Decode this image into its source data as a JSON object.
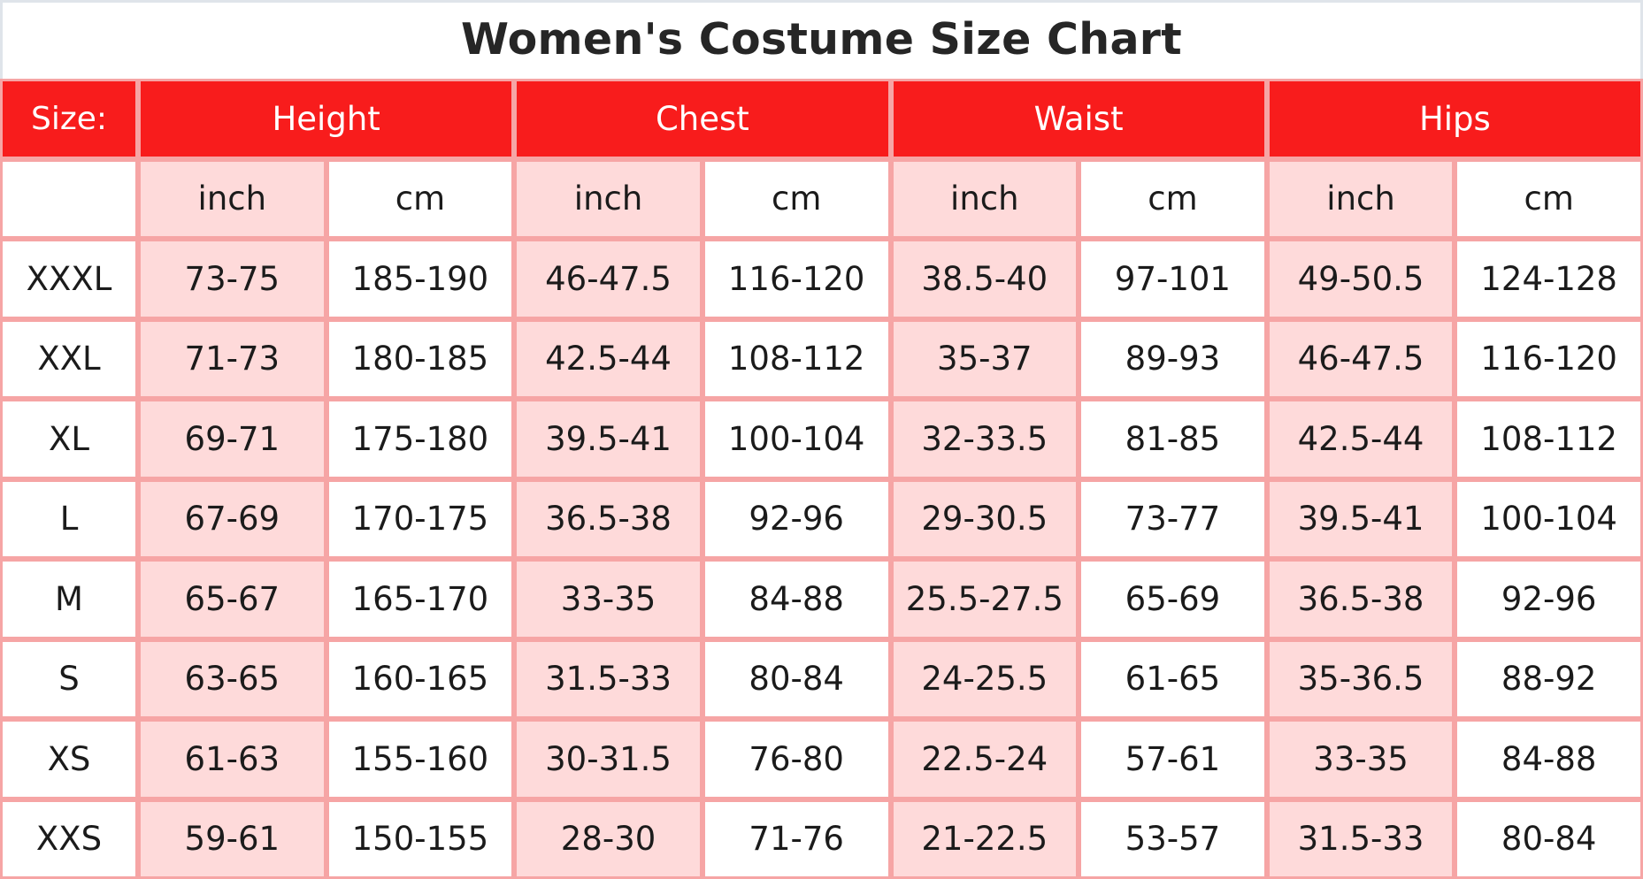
{
  "title": "Women's Costume Size Chart",
  "header": {
    "size_label": "Size:",
    "groups": [
      "Height",
      "Chest",
      "Waist",
      "Hips"
    ],
    "units": [
      "inch",
      "cm",
      "inch",
      "cm",
      "inch",
      "cm",
      "inch",
      "cm"
    ]
  },
  "rows": [
    {
      "size": "XXXL",
      "values": [
        "73-75",
        "185-190",
        "46-47.5",
        "116-120",
        "38.5-40",
        "97-101",
        "49-50.5",
        "124-128"
      ]
    },
    {
      "size": "XXL",
      "values": [
        "71-73",
        "180-185",
        "42.5-44",
        "108-112",
        "35-37",
        "89-93",
        "46-47.5",
        "116-120"
      ]
    },
    {
      "size": "XL",
      "values": [
        "69-71",
        "175-180",
        "39.5-41",
        "100-104",
        "32-33.5",
        "81-85",
        "42.5-44",
        "108-112"
      ]
    },
    {
      "size": "L",
      "values": [
        "67-69",
        "170-175",
        "36.5-38",
        "92-96",
        "29-30.5",
        "73-77",
        "39.5-41",
        "100-104"
      ]
    },
    {
      "size": "M",
      "values": [
        "65-67",
        "165-170",
        "33-35",
        "84-88",
        "25.5-27.5",
        "65-69",
        "36.5-38",
        "92-96"
      ]
    },
    {
      "size": "S",
      "values": [
        "63-65",
        "160-165",
        "31.5-33",
        "80-84",
        "24-25.5",
        "61-65",
        "35-36.5",
        "88-92"
      ]
    },
    {
      "size": "XS",
      "values": [
        "61-63",
        "155-160",
        "30-31.5",
        "76-80",
        "22.5-24",
        "57-61",
        "33-35",
        "84-88"
      ]
    },
    {
      "size": "XXS",
      "values": [
        "59-61",
        "150-155",
        "28-30",
        "71-76",
        "21-22.5",
        "53-57",
        "31.5-33",
        "80-84"
      ]
    }
  ],
  "colors": {
    "header_red": "#f81c1c",
    "grid_line_pink": "#f6a5a5",
    "inch_cell_pink": "#fedada",
    "cm_cell_white": "#ffffff",
    "title_text": "#262626"
  }
}
